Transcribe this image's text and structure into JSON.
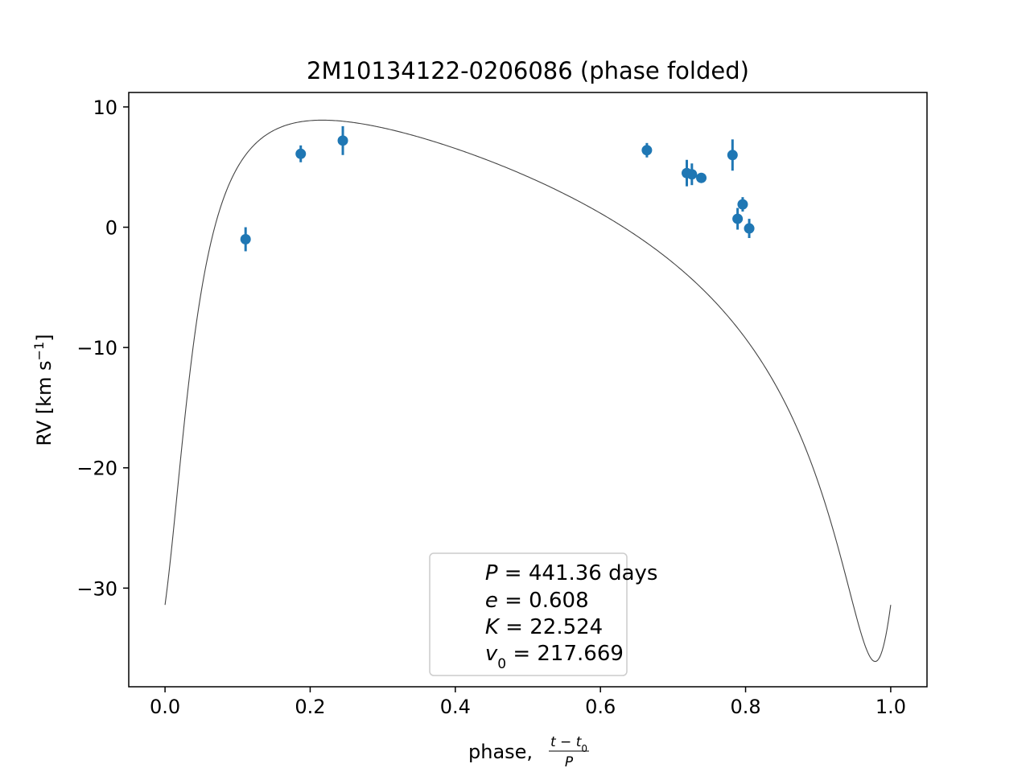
{
  "chart_data": {
    "type": "scatter",
    "title": "2M10134122-0206086 (phase folded)",
    "xlabel": {
      "prefix": "phase, ",
      "numerator": "t − t",
      "numerator_sub": "0",
      "denominator": "P"
    },
    "ylabel": {
      "text": "RV [km s",
      "sup": "−1",
      "suffix": "]"
    },
    "xlim": [
      -0.05,
      1.05
    ],
    "ylim": [
      -38.2,
      11.2
    ],
    "xticks": [
      0.0,
      0.2,
      0.4,
      0.6,
      0.8,
      1.0
    ],
    "xtick_labels": [
      "0.0",
      "0.2",
      "0.4",
      "0.6",
      "0.8",
      "1.0"
    ],
    "yticks": [
      -30,
      -20,
      -10,
      0,
      10
    ],
    "ytick_labels": [
      "−30",
      "−20",
      "−10",
      "0",
      "10"
    ],
    "grid": false,
    "colors": {
      "points": "#1f77b4",
      "model": "#444444",
      "frame": "#000000"
    },
    "model": {
      "name": "",
      "P_days": 441.36,
      "e": 0.608,
      "K": 22.524,
      "v0": 217.669
    },
    "series": [
      {
        "name": "",
        "points": [
          {
            "x": 0.111,
            "y": -1.0,
            "err": 1.0
          },
          {
            "x": 0.187,
            "y": 6.1,
            "err": 0.7
          },
          {
            "x": 0.245,
            "y": 7.2,
            "err": 1.2
          },
          {
            "x": 0.664,
            "y": 6.4,
            "err": 0.6
          },
          {
            "x": 0.719,
            "y": 4.5,
            "err": 1.1
          },
          {
            "x": 0.726,
            "y": 4.4,
            "err": 0.9
          },
          {
            "x": 0.739,
            "y": 4.1,
            "err": 0.4
          },
          {
            "x": 0.782,
            "y": 6.0,
            "err": 1.3
          },
          {
            "x": 0.789,
            "y": 0.7,
            "err": 0.9
          },
          {
            "x": 0.796,
            "y": 1.9,
            "err": 0.6
          },
          {
            "x": 0.805,
            "y": -0.1,
            "err": 0.8
          }
        ]
      }
    ],
    "legend": {
      "placement": "lower-center",
      "lines": [
        {
          "sym": "P",
          "sub": "",
          "value": " = 441.36 days"
        },
        {
          "sym": "e",
          "sub": "",
          "value": " = 0.608"
        },
        {
          "sym": "K",
          "sub": "",
          "value": " = 22.524"
        },
        {
          "sym": "v",
          "sub": "0",
          "value": " = 217.669"
        }
      ]
    }
  }
}
